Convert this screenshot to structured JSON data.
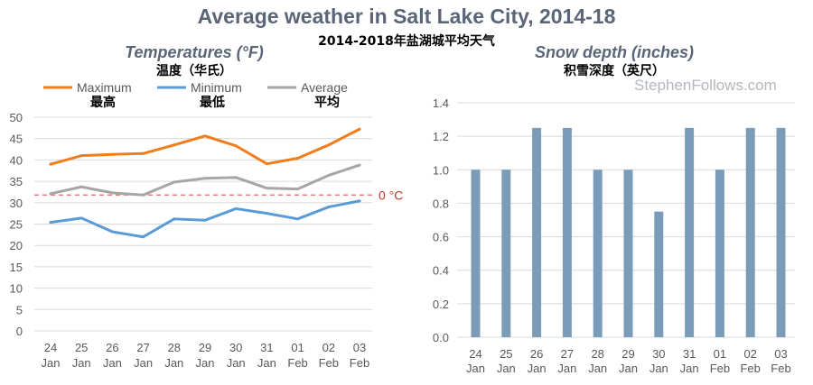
{
  "title": "Average weather in Salt Lake City, 2014-18",
  "subtitle": "2014-2018年盐湖城平均天气",
  "watermark": "StephenFollows.com",
  "colors": {
    "maximum": "#f07c1c",
    "minimum": "#5b9bd5",
    "average": "#a6a6a6",
    "freezing_line": "#e06666",
    "bar": "#7a9cb8",
    "gridline": "#d9d9d9",
    "axis_text": "#595959"
  },
  "chart_data": [
    {
      "type": "line",
      "title": "Temperatures (°F)",
      "subtitle": "温度（华氏）",
      "categories": [
        "24 Jan",
        "25 Jan",
        "26 Jan",
        "27 Jan",
        "28 Jan",
        "29 Jan",
        "30 Jan",
        "31 Jan",
        "01 Feb",
        "02 Feb",
        "03 Feb"
      ],
      "category_day": [
        "24",
        "25",
        "26",
        "27",
        "28",
        "29",
        "30",
        "31",
        "01",
        "02",
        "03"
      ],
      "category_month": [
        "Jan",
        "Jan",
        "Jan",
        "Jan",
        "Jan",
        "Jan",
        "Jan",
        "Jan",
        "Feb",
        "Feb",
        "Feb"
      ],
      "series": [
        {
          "name": "Maximum",
          "name_cn": "最高",
          "values": [
            39.0,
            41.0,
            41.3,
            41.5,
            43.5,
            45.6,
            43.3,
            39.1,
            40.4,
            43.5,
            47.2
          ]
        },
        {
          "name": "Minimum",
          "name_cn": "最低",
          "values": [
            25.4,
            26.4,
            23.2,
            22.0,
            26.2,
            25.9,
            28.6,
            27.5,
            26.2,
            29.0,
            30.4
          ]
        },
        {
          "name": "Average",
          "name_cn": "平均",
          "values": [
            32.1,
            33.7,
            32.3,
            31.8,
            34.8,
            35.7,
            35.9,
            33.4,
            33.2,
            36.4,
            38.8
          ]
        }
      ],
      "reference_line": {
        "value": 31.8,
        "label": "0 °C"
      },
      "ylim": [
        0,
        50
      ],
      "yticks": [
        "0",
        "5",
        "10",
        "15",
        "20",
        "25",
        "30",
        "35",
        "40",
        "45",
        "50"
      ],
      "grid": true,
      "legend": "top"
    },
    {
      "type": "bar",
      "title": "Snow depth (inches)",
      "subtitle": "积雪深度（英尺）",
      "categories": [
        "24 Jan",
        "25 Jan",
        "26 Jan",
        "27 Jan",
        "28 Jan",
        "29 Jan",
        "30 Jan",
        "31 Jan",
        "01 Feb",
        "02 Feb",
        "03 Feb"
      ],
      "category_day": [
        "24",
        "25",
        "26",
        "27",
        "28",
        "29",
        "30",
        "31",
        "01",
        "02",
        "03"
      ],
      "category_month": [
        "Jan",
        "Jan",
        "Jan",
        "Jan",
        "Jan",
        "Jan",
        "Jan",
        "Jan",
        "Feb",
        "Feb",
        "Feb"
      ],
      "values": [
        1.0,
        1.0,
        1.25,
        1.25,
        1.0,
        1.0,
        0.75,
        1.25,
        1.0,
        1.25,
        1.25
      ],
      "ylim": [
        0,
        1.4
      ],
      "yticks": [
        "0.0",
        "0.2",
        "0.4",
        "0.6",
        "0.8",
        "1.0",
        "1.2",
        "1.4"
      ],
      "grid": true
    }
  ]
}
